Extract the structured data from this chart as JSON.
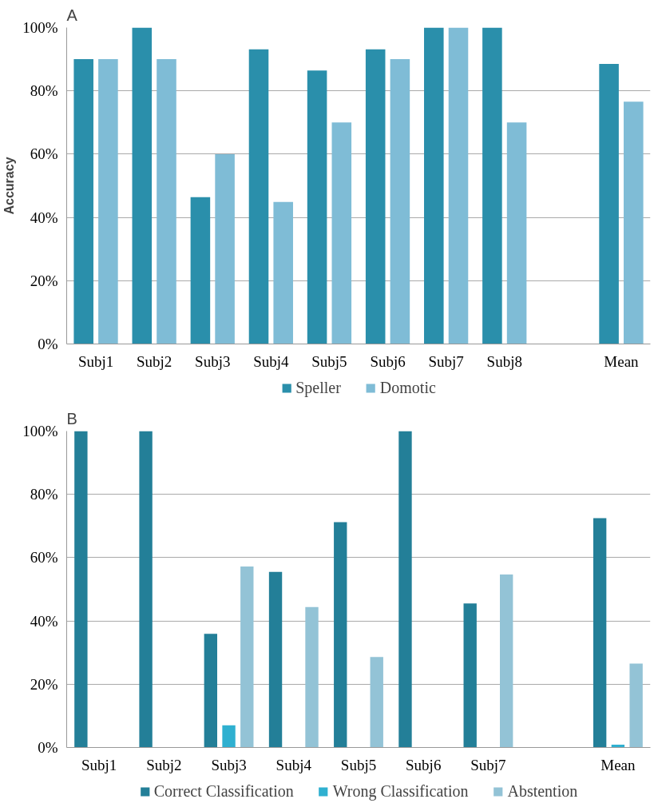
{
  "chart_data": [
    {
      "type": "bar",
      "title": "A",
      "ylabel": "Accuracy",
      "categories": [
        "Subj1",
        "Subj2",
        "Subj3",
        "Subj4",
        "Subj5",
        "Subj6",
        "Subj7",
        "Subj8",
        null,
        "Mean"
      ],
      "series": [
        {
          "name": "Speller",
          "color": "#2a8fab",
          "values": [
            90,
            100,
            46.4,
            93.1,
            86.4,
            93.1,
            100,
            100,
            null,
            88.5
          ]
        },
        {
          "name": "Domotic",
          "color": "#7fbcd6",
          "values": [
            90,
            90,
            60,
            44.9,
            70,
            90,
            100,
            70,
            null,
            76.6
          ]
        }
      ],
      "ylim": [
        0,
        100
      ],
      "yticks": [
        {
          "value": 0,
          "label": "0%"
        },
        {
          "value": 20,
          "label": "20%"
        },
        {
          "value": 40,
          "label": "40%"
        },
        {
          "value": 60,
          "label": "60%"
        },
        {
          "value": 80,
          "label": "80%"
        },
        {
          "value": 100,
          "label": "100%"
        }
      ],
      "grid": "y",
      "legend": "bottom"
    },
    {
      "type": "bar",
      "title": "B",
      "categories": [
        "Subj1",
        "Subj2",
        "Subj3",
        "Subj4",
        "Subj5",
        "Subj6",
        "Subj7",
        null,
        "Mean"
      ],
      "series": [
        {
          "name": "Correct Classification",
          "color": "#237f98",
          "values": [
            100,
            100,
            35.9,
            55.5,
            71.2,
            100,
            45.5,
            null,
            72.5
          ]
        },
        {
          "name": "Wrong Classification",
          "color": "#2fb0d0",
          "values": [
            0,
            0,
            7.0,
            0,
            0,
            0,
            0,
            null,
            0.9
          ]
        },
        {
          "name": "Abstention",
          "color": "#93c3d6",
          "values": [
            0,
            0,
            57.2,
            44.4,
            28.6,
            0,
            54.7,
            null,
            26.5
          ]
        }
      ],
      "ylim": [
        0,
        100
      ],
      "yticks": [
        {
          "value": 0,
          "label": "0%"
        },
        {
          "value": 20,
          "label": "20%"
        },
        {
          "value": 40,
          "label": "40%"
        },
        {
          "value": 60,
          "label": "60%"
        },
        {
          "value": 80,
          "label": "80%"
        },
        {
          "value": 100,
          "label": "100%"
        }
      ],
      "grid": "y",
      "legend": "bottom"
    }
  ]
}
